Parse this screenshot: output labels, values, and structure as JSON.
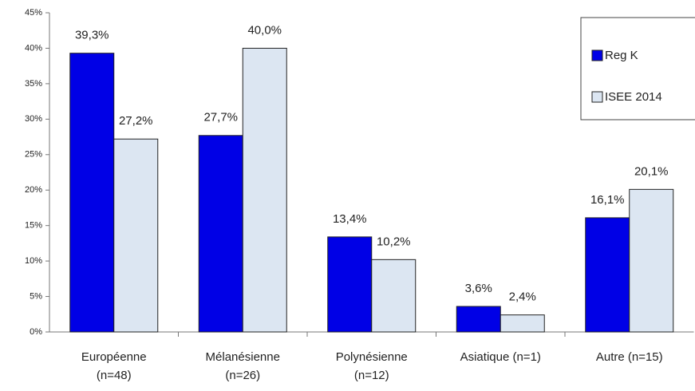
{
  "chart_data": {
    "type": "bar",
    "categories": [
      "Européenne\n(n=48)",
      "Mélanésienne\n(n=26)",
      "Polynésienne\n(n=12)",
      "Asiatique (n=1)",
      "Autre (n=15)"
    ],
    "series": [
      {
        "name": "Reg K",
        "color": "#0000e6",
        "values": [
          39.3,
          27.7,
          13.4,
          3.6,
          16.1
        ],
        "value_labels": [
          "39,3%",
          "27,7%",
          "13,4%",
          "3,6%",
          "16,1%"
        ]
      },
      {
        "name": "ISEE 2014",
        "color": "#dce6f2",
        "values": [
          27.2,
          40.0,
          10.2,
          2.4,
          20.1
        ],
        "value_labels": [
          "27,2%",
          "40,0%",
          "10,2%",
          "2,4%",
          "20,1%"
        ]
      }
    ],
    "ylim": [
      0,
      45
    ],
    "yticks": [
      {
        "value": 0,
        "label": "0%"
      },
      {
        "value": 5,
        "label": "5%"
      },
      {
        "value": 10,
        "label": "10%"
      },
      {
        "value": 15,
        "label": "15%"
      },
      {
        "value": 20,
        "label": "20%"
      },
      {
        "value": 25,
        "label": "25%"
      },
      {
        "value": 30,
        "label": "30%"
      },
      {
        "value": 35,
        "label": "35%"
      },
      {
        "value": 40,
        "label": "40%"
      },
      {
        "value": 45,
        "label": "45%"
      }
    ],
    "grid": false,
    "legend": "top-right"
  }
}
